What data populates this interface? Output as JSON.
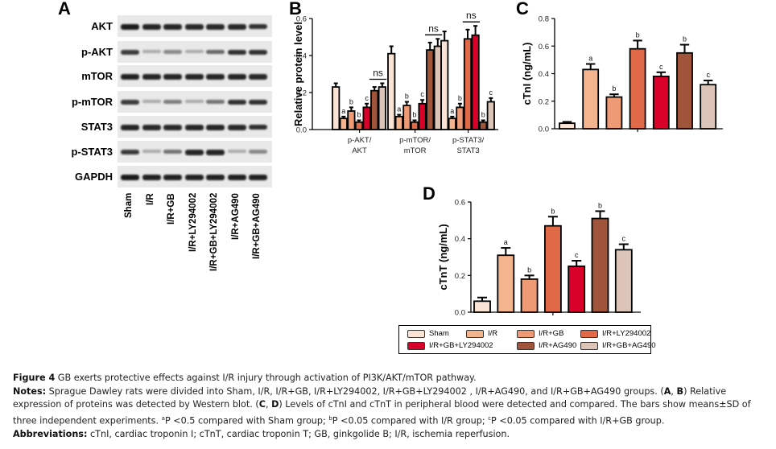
{
  "groups": [
    "Sham",
    "I/R",
    "I/R+GB",
    "I/R+LY294002",
    "I/R+GB+LY294002",
    "I/R+AG490",
    "I/R+GB+AG490"
  ],
  "colors": [
    "#fbe3d6",
    "#f4b48e",
    "#ee9a74",
    "#e06a48",
    "#d9002a",
    "#a0553a",
    "#dcc5b8"
  ],
  "panel_a": {
    "letter": "A",
    "rows": [
      {
        "label": "AKT",
        "intensity": [
          0.95,
          0.9,
          0.9,
          0.88,
          0.88,
          0.88,
          0.85
        ]
      },
      {
        "label": "p-AKT",
        "intensity": [
          0.8,
          0.3,
          0.45,
          0.3,
          0.6,
          0.85,
          0.85
        ]
      },
      {
        "label": "mTOR",
        "intensity": [
          0.92,
          0.9,
          0.9,
          0.9,
          0.9,
          0.9,
          0.88
        ]
      },
      {
        "label": "p-mTOR",
        "intensity": [
          0.8,
          0.3,
          0.5,
          0.3,
          0.55,
          0.85,
          0.85
        ]
      },
      {
        "label": "STAT3",
        "intensity": [
          0.9,
          0.88,
          0.88,
          0.9,
          0.9,
          0.88,
          0.86
        ]
      },
      {
        "label": "p-STAT3",
        "intensity": [
          0.8,
          0.3,
          0.55,
          0.9,
          0.9,
          0.3,
          0.45
        ]
      },
      {
        "label": "GAPDH",
        "intensity": [
          0.95,
          0.92,
          0.92,
          0.92,
          0.92,
          0.92,
          0.92
        ]
      }
    ]
  },
  "chart_data": [
    {
      "panel": "B",
      "type": "bar",
      "title": "",
      "xlabel": "",
      "ylabel": "Relative protein level",
      "ylim": [
        0,
        0.6
      ],
      "yticks": [
        "0.0",
        "0.2",
        "0.4",
        "0.6"
      ],
      "categories": [
        "p-AKT/\nAKT",
        "p-mTOR/\nmTOR",
        "p-STAT3/\nSTAT3"
      ],
      "category_lines": [
        [
          "p-AKT/",
          "AKT"
        ],
        [
          "p-mTOR/",
          "mTOR"
        ],
        [
          "p-STAT3/",
          "STAT3"
        ]
      ],
      "series": [
        {
          "name": "Sham",
          "values": [
            0.23,
            0.41,
            0.48
          ],
          "errors": [
            0.02,
            0.04,
            0.05
          ],
          "labels": [
            "",
            "",
            ""
          ]
        },
        {
          "name": "I/R",
          "values": [
            0.06,
            0.07,
            0.06
          ],
          "errors": [
            0.01,
            0.01,
            0.01
          ],
          "labels": [
            "a",
            "a",
            "a"
          ]
        },
        {
          "name": "I/R+GB",
          "values": [
            0.1,
            0.13,
            0.12
          ],
          "errors": [
            0.02,
            0.02,
            0.02
          ],
          "labels": [
            "b",
            "b",
            "b"
          ]
        },
        {
          "name": "I/R+LY294002",
          "values": [
            0.04,
            0.04,
            0.49
          ],
          "errors": [
            0.01,
            0.01,
            0.05
          ],
          "labels": [
            "b",
            "b",
            ""
          ]
        },
        {
          "name": "I/R+GB+LY294002",
          "values": [
            0.12,
            0.14,
            0.51
          ],
          "errors": [
            0.02,
            0.02,
            0.05
          ],
          "labels": [
            "c",
            "c",
            ""
          ]
        },
        {
          "name": "I/R+AG490",
          "values": [
            0.21,
            0.43,
            0.04
          ],
          "errors": [
            0.02,
            0.04,
            0.01
          ],
          "labels": [
            "",
            "",
            "b"
          ]
        },
        {
          "name": "I/R+GB+AG490",
          "values": [
            0.23,
            0.45,
            0.15
          ],
          "errors": [
            0.02,
            0.04,
            0.02
          ],
          "labels": [
            "",
            "",
            "c"
          ]
        }
      ],
      "annotations": [
        {
          "text": "ns",
          "category": 0,
          "from_series": 5,
          "to_series": 6
        },
        {
          "text": "ns",
          "category": 1,
          "from_series": 5,
          "to_series": 6
        },
        {
          "text": "ns",
          "category": 2,
          "from_series": 3,
          "to_series": 4
        }
      ],
      "grid": false
    },
    {
      "panel": "C",
      "type": "bar",
      "title": "",
      "xlabel": "",
      "ylabel": "cTnI (ng/mL)",
      "ylim": [
        0,
        0.8
      ],
      "yticks": [
        "0.0",
        "0.2",
        "0.4",
        "0.6",
        "0.8"
      ],
      "categories": [
        "Sham",
        "I/R",
        "I/R+GB",
        "I/R+LY294002",
        "I/R+GB+LY294002",
        "I/R+AG490",
        "I/R+GB+AG490"
      ],
      "values": [
        0.04,
        0.43,
        0.23,
        0.58,
        0.38,
        0.55,
        0.32
      ],
      "errors": [
        0.01,
        0.04,
        0.02,
        0.06,
        0.03,
        0.06,
        0.03
      ],
      "labels": [
        "",
        "a",
        "b",
        "b",
        "c",
        "b",
        "c"
      ],
      "grid": false
    },
    {
      "panel": "D",
      "type": "bar",
      "title": "",
      "xlabel": "",
      "ylabel": "cTnT (ng/mL)",
      "ylim": [
        0,
        0.6
      ],
      "yticks": [
        "0.0",
        "0.2",
        "0.4",
        "0.6"
      ],
      "categories": [
        "Sham",
        "I/R",
        "I/R+GB",
        "I/R+LY294002",
        "I/R+GB+LY294002",
        "I/R+AG490",
        "I/R+GB+AG490"
      ],
      "values": [
        0.06,
        0.31,
        0.18,
        0.47,
        0.25,
        0.51,
        0.34
      ],
      "errors": [
        0.02,
        0.04,
        0.02,
        0.05,
        0.03,
        0.04,
        0.03
      ],
      "labels": [
        "",
        "a",
        "b",
        "b",
        "c",
        "b",
        "c"
      ],
      "grid": false,
      "legend": "bottom"
    }
  ],
  "legend": {
    "items": [
      "Sham",
      "I/R",
      "I/R+GB",
      "I/R+LY294002",
      "I/R+GB+LY294002",
      "I/R+AG490",
      "I/R+GB+AG490"
    ]
  },
  "caption": {
    "fig_label": "Figure 4",
    "fig_title": " GB exerts protective effects against I/R injury through activation of PI3K/AKT/mTOR pathway.",
    "notes_label": "Notes:",
    "notes_1": " Sprague Dawley rats were divided into Sham, I/R, I/R+GB, I/R+LY294002, I/R+GB+LY294002 , I/R+AG490, and I/R+GB+AG490 groups. (",
    "notes_ab": "A",
    "notes_comma1": ", ",
    "notes_b": "B",
    "notes_2": ") Relative expression of proteins was detected by Western blot. (",
    "notes_c": "C",
    "notes_comma2": ", ",
    "notes_d": "D",
    "notes_3": ") Levels of cTnI and cTnT in peripheral blood were detected and compared. The bars show means±SD of three independent experiments. ",
    "sup_a": "a",
    "p_a": "P <0.5 compared with Sham group; ",
    "sup_b": "b",
    "p_b": "P <0.05 compared with I/R group; ",
    "sup_c": "c",
    "p_c": "P <0.05 compared with I/R+GB group.",
    "abbr_label": "Abbreviations:",
    "abbr_text": " cTnI, cardiac troponin I; cTnT, cardiac troponin T; GB, ginkgolide B; I/R, ischemia reperfusion."
  }
}
